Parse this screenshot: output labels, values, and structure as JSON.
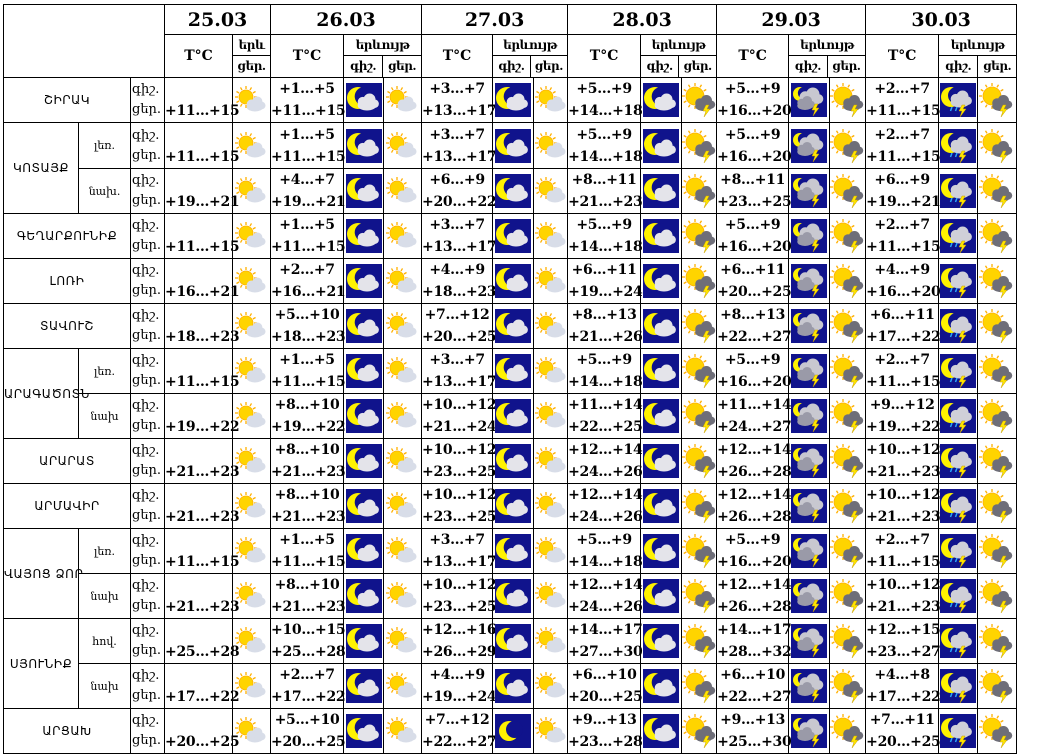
{
  "header": {
    "dates": [
      "25.03",
      "26.03",
      "27.03",
      "28.03",
      "29.03",
      "30.03"
    ],
    "temp_label": "T°C",
    "phen_label": "երևույթ",
    "phen_label_short": "երև",
    "night": "գիշ.",
    "day": "ցեր."
  },
  "rows": [
    {
      "region": "ՇԻՐԱԿ",
      "sub": "",
      "d25": "+11…+15",
      "d": [
        {
          "n": "+1…+5",
          "day": "+11…+15",
          "i": [
            "moon-cloud",
            "sun-cloud"
          ]
        },
        {
          "n": "+3…+7",
          "day": "+13…+17",
          "i": [
            "moon-cloud",
            "sun-cloud"
          ]
        },
        {
          "n": "+5…+9",
          "day": "+14…+18",
          "i": [
            "moon-cloud",
            "sun-storm"
          ]
        },
        {
          "n": "+5…+9",
          "day": "+16…+20",
          "i": [
            "cloud-storm",
            "sun-storm"
          ]
        },
        {
          "n": "+2…+7",
          "day": "+11…+15",
          "i": [
            "moon-storm",
            "sun-storm"
          ]
        }
      ]
    },
    {
      "region": "ԿՈՏԱՅՔ",
      "sub": "լեռ.",
      "d25": "+11…+15",
      "d": [
        {
          "n": "+1…+5",
          "day": "+11…+15",
          "i": [
            "moon-cloud",
            "sun-cloud"
          ]
        },
        {
          "n": "+3…+7",
          "day": "+13…+17",
          "i": [
            "moon-cloud",
            "sun-cloud"
          ]
        },
        {
          "n": "+5…+9",
          "day": "+14…+18",
          "i": [
            "moon-cloud",
            "sun-storm"
          ]
        },
        {
          "n": "+5…+9",
          "day": "+16…+20",
          "i": [
            "cloud-storm",
            "sun-storm"
          ]
        },
        {
          "n": "+2…+7",
          "day": "+11…+15",
          "i": [
            "moon-storm",
            "sun-storm"
          ]
        }
      ]
    },
    {
      "region": "",
      "sub": "նախ.",
      "d25": "+19…+21",
      "d": [
        {
          "n": "+4…+7",
          "day": "+19…+21",
          "i": [
            "moon-cloud",
            "sun-cloud"
          ]
        },
        {
          "n": "+6…+9",
          "day": "+20…+22",
          "i": [
            "moon-cloud",
            "sun-cloud"
          ]
        },
        {
          "n": "+8…+11",
          "day": "+21…+23",
          "i": [
            "moon-cloud",
            "sun-storm"
          ]
        },
        {
          "n": "+8…+11",
          "day": "+23…+25",
          "i": [
            "cloud-storm",
            "sun-storm"
          ]
        },
        {
          "n": "+6…+9",
          "day": "+19…+21",
          "i": [
            "moon-storm",
            "sun-storm"
          ]
        }
      ]
    },
    {
      "region": "ԳԵՂԱՐՔՈՒՆԻՔ",
      "sub": "",
      "d25": "+11…+15",
      "d": [
        {
          "n": "+1…+5",
          "day": "+11…+15",
          "i": [
            "moon-cloud",
            "sun-cloud"
          ]
        },
        {
          "n": "+3…+7",
          "day": "+13…+17",
          "i": [
            "moon-cloud",
            "sun-cloud"
          ]
        },
        {
          "n": "+5…+9",
          "day": "+14…+18",
          "i": [
            "moon-cloud",
            "sun-storm"
          ]
        },
        {
          "n": "+5…+9",
          "day": "+16…+20",
          "i": [
            "cloud-storm",
            "sun-storm"
          ]
        },
        {
          "n": "+2…+7",
          "day": "+11…+15",
          "i": [
            "moon-storm",
            "sun-storm"
          ]
        }
      ]
    },
    {
      "region": "ԼՈՌԻ",
      "sub": "",
      "d25": "+16…+21",
      "d": [
        {
          "n": "+2…+7",
          "day": "+16…+21",
          "i": [
            "moon-cloud",
            "sun-cloud"
          ]
        },
        {
          "n": "+4…+9",
          "day": "+18…+23",
          "i": [
            "moon-cloud",
            "sun-cloud"
          ]
        },
        {
          "n": "+6…+11",
          "day": "+19…+24",
          "i": [
            "moon-cloud",
            "sun-storm"
          ]
        },
        {
          "n": "+6…+11",
          "day": "+20…+25",
          "i": [
            "cloud-storm",
            "sun-storm"
          ]
        },
        {
          "n": "+4…+9",
          "day": "+16…+20",
          "i": [
            "moon-storm",
            "sun-storm"
          ]
        }
      ]
    },
    {
      "region": "ՏԱՎՈՒՇ",
      "sub": "",
      "d25": "+18…+23",
      "d": [
        {
          "n": "+5…+10",
          "day": "+18…+23",
          "i": [
            "moon-cloud",
            "sun-cloud"
          ]
        },
        {
          "n": "+7…+12",
          "day": "+20…+25",
          "i": [
            "moon-cloud",
            "sun-cloud"
          ]
        },
        {
          "n": "+8…+13",
          "day": "+21…+26",
          "i": [
            "moon-cloud",
            "sun-storm"
          ]
        },
        {
          "n": "+8…+13",
          "day": "+22…+27",
          "i": [
            "cloud-storm",
            "sun-storm"
          ]
        },
        {
          "n": "+6…+11",
          "day": "+17…+22",
          "i": [
            "moon-storm",
            "sun-storm"
          ]
        }
      ]
    },
    {
      "region": "ԱՐԱԳԱԾՈՏՆ",
      "sub": "լեռ.",
      "d25": "+11…+15",
      "d": [
        {
          "n": "+1…+5",
          "day": "+11…+15",
          "i": [
            "moon-cloud",
            "sun-cloud"
          ]
        },
        {
          "n": "+3…+7",
          "day": "+13…+17",
          "i": [
            "moon-cloud",
            "sun-cloud"
          ]
        },
        {
          "n": "+5…+9",
          "day": "+14…+18",
          "i": [
            "moon-cloud",
            "sun-storm"
          ]
        },
        {
          "n": "+5…+9",
          "day": "+16…+20",
          "i": [
            "cloud-storm",
            "sun-storm"
          ]
        },
        {
          "n": "+2…+7",
          "day": "+11…+15",
          "i": [
            "moon-storm",
            "sun-storm"
          ]
        }
      ]
    },
    {
      "region": "",
      "sub": "նախ",
      "d25": "+19…+22",
      "d": [
        {
          "n": "+8…+10",
          "day": "+19…+22",
          "i": [
            "moon-cloud",
            "sun-cloud"
          ]
        },
        {
          "n": "+10…+12",
          "day": "+21…+24",
          "i": [
            "moon-cloud",
            "sun-cloud"
          ]
        },
        {
          "n": "+11…+14",
          "day": "+22…+25",
          "i": [
            "moon-cloud",
            "sun-storm"
          ]
        },
        {
          "n": "+11…+14",
          "day": "+24…+27",
          "i": [
            "cloud-storm",
            "sun-storm"
          ]
        },
        {
          "n": "+9…+12",
          "day": "+19…+22",
          "i": [
            "moon-storm",
            "sun-storm"
          ]
        }
      ]
    },
    {
      "region": "ԱՐԱՐԱՏ",
      "sub": "",
      "d25": "+21…+23",
      "d": [
        {
          "n": "+8…+10",
          "day": "+21…+23",
          "i": [
            "moon-cloud",
            "sun-cloud"
          ]
        },
        {
          "n": "+10…+12",
          "day": "+23…+25",
          "i": [
            "moon-cloud",
            "sun-cloud"
          ]
        },
        {
          "n": "+12…+14",
          "day": "+24…+26",
          "i": [
            "moon-cloud",
            "sun-storm"
          ]
        },
        {
          "n": "+12…+14",
          "day": "+26…+28",
          "i": [
            "cloud-storm",
            "sun-storm"
          ]
        },
        {
          "n": "+10…+12",
          "day": "+21…+23",
          "i": [
            "moon-storm",
            "sun-storm"
          ]
        }
      ]
    },
    {
      "region": "ԱՐՄԱՎԻՐ",
      "sub": "",
      "d25": "+21…+23",
      "d": [
        {
          "n": "+8…+10",
          "day": "+21…+23",
          "i": [
            "moon-cloud",
            "sun-cloud"
          ]
        },
        {
          "n": "+10…+12",
          "day": "+23…+25",
          "i": [
            "moon-cloud",
            "sun-cloud"
          ]
        },
        {
          "n": "+12…+14",
          "day": "+24…+26",
          "i": [
            "moon-cloud",
            "sun-storm"
          ]
        },
        {
          "n": "+12…+14",
          "day": "+26…+28",
          "i": [
            "cloud-storm",
            "sun-storm"
          ]
        },
        {
          "n": "+10…+12",
          "day": "+21…+23",
          "i": [
            "moon-storm",
            "sun-storm"
          ]
        }
      ]
    },
    {
      "region": "ՎԱՅՈՑ ՁՈՐ",
      "sub": "լեռ.",
      "d25": "+11…+15",
      "d": [
        {
          "n": "+1…+5",
          "day": "+11…+15",
          "i": [
            "moon-cloud",
            "sun-cloud"
          ]
        },
        {
          "n": "+3…+7",
          "day": "+13…+17",
          "i": [
            "moon-cloud",
            "sun-cloud"
          ]
        },
        {
          "n": "+5…+9",
          "day": "+14…+18",
          "i": [
            "moon-cloud",
            "sun-storm"
          ]
        },
        {
          "n": "+5…+9",
          "day": "+16…+20",
          "i": [
            "cloud-storm",
            "sun-storm"
          ]
        },
        {
          "n": "+2…+7",
          "day": "+11…+15",
          "i": [
            "moon-storm",
            "sun-storm"
          ]
        }
      ]
    },
    {
      "region": "",
      "sub": "նախ",
      "d25": "+21…+23",
      "d": [
        {
          "n": "+8…+10",
          "day": "+21…+23",
          "i": [
            "moon-cloud",
            "sun-cloud"
          ]
        },
        {
          "n": "+10…+12",
          "day": "+23…+25",
          "i": [
            "moon-cloud",
            "sun-cloud"
          ]
        },
        {
          "n": "+12…+14",
          "day": "+24…+26",
          "i": [
            "moon-cloud",
            "sun-storm"
          ]
        },
        {
          "n": "+12…+14",
          "day": "+26…+28",
          "i": [
            "cloud-storm",
            "sun-storm"
          ]
        },
        {
          "n": "+10…+12",
          "day": "+21…+23",
          "i": [
            "moon-storm",
            "sun-storm"
          ]
        }
      ]
    },
    {
      "region": "ՍՅՈՒՆԻՔ",
      "sub": "հով.",
      "d25": "+25…+28",
      "d": [
        {
          "n": "+10…+15",
          "day": "+25…+28",
          "i": [
            "moon-cloud",
            "sun-cloud"
          ]
        },
        {
          "n": "+12…+16",
          "day": "+26…+29",
          "i": [
            "moon-cloud",
            "sun-cloud"
          ]
        },
        {
          "n": "+14…+17",
          "day": "+27…+30",
          "i": [
            "moon-cloud",
            "sun-storm"
          ]
        },
        {
          "n": "+14…+17",
          "day": "+28…+32",
          "i": [
            "cloud-storm",
            "sun-storm"
          ]
        },
        {
          "n": "+12…+15",
          "day": "+23…+27",
          "i": [
            "moon-storm",
            "sun-storm"
          ]
        }
      ]
    },
    {
      "region": "",
      "sub": "նախ",
      "d25": "+17…+22",
      "d": [
        {
          "n": "+2…+7",
          "day": "+17…+22",
          "i": [
            "moon-cloud",
            "sun-cloud"
          ]
        },
        {
          "n": "+4…+9",
          "day": "+19…+24",
          "i": [
            "moon-cloud",
            "sun-cloud"
          ]
        },
        {
          "n": "+6…+10",
          "day": "+20…+25",
          "i": [
            "moon-cloud",
            "sun-storm"
          ]
        },
        {
          "n": "+6…+10",
          "day": "+22…+27",
          "i": [
            "cloud-storm",
            "sun-storm"
          ]
        },
        {
          "n": "+4…+8",
          "day": "+17…+22",
          "i": [
            "moon-storm",
            "sun-storm"
          ]
        }
      ]
    },
    {
      "region": "ԱՐՑԱԽ",
      "sub": "",
      "d25": "+20…+25",
      "d": [
        {
          "n": "+5…+10",
          "day": "+20…+25",
          "i": [
            "moon-cloud",
            "sun-cloud"
          ]
        },
        {
          "n": "+7…+12",
          "day": "+22…+27",
          "i": [
            "moon",
            "sun-cloud"
          ]
        },
        {
          "n": "+9…+13",
          "day": "+23…+28",
          "i": [
            "moon-cloud",
            "sun-storm"
          ]
        },
        {
          "n": "+9…+13",
          "day": "+25…+30",
          "i": [
            "cloud-storm",
            "sun-storm"
          ]
        },
        {
          "n": "+7…+11",
          "day": "+20…+25",
          "i": [
            "moon-storm",
            "sun-storm"
          ]
        }
      ]
    }
  ],
  "icon_colors": {
    "night_bg": "#10138c",
    "moon": "#fff200",
    "sun": "#ffd400",
    "cloud": "#c8c8d0",
    "storm_cloud": "#6e6e78",
    "lightning": "#ffe600"
  }
}
